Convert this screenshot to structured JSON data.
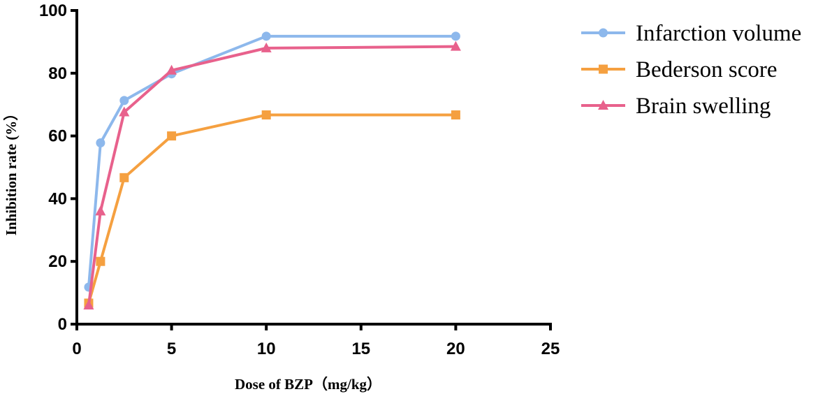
{
  "chart_data": {
    "type": "line",
    "title": "",
    "xlabel": "Dose of BZP（mg/kg）",
    "ylabel": "Inhibition rate (%）",
    "xlim": [
      0,
      25
    ],
    "ylim": [
      0,
      100
    ],
    "x_ticks": [
      "0",
      "5",
      "10",
      "15",
      "20",
      "25"
    ],
    "y_ticks": [
      "0",
      "20",
      "40",
      "60",
      "80",
      "100"
    ],
    "legend_position": "top-right",
    "grid": false,
    "series": [
      {
        "name": "Infarction volume",
        "color": "#8db8ec",
        "marker": "circle",
        "x": [
          0.625,
          1.25,
          2.5,
          5,
          10,
          20
        ],
        "values": [
          11.8,
          57.8,
          71.3,
          79.8,
          91.8,
          91.8
        ]
      },
      {
        "name": "Bederson score",
        "color": "#f5a040",
        "marker": "square",
        "x": [
          0.625,
          1.25,
          2.5,
          5,
          10,
          20
        ],
        "values": [
          6.7,
          20.0,
          46.7,
          60.0,
          66.7,
          66.7
        ]
      },
      {
        "name": "Brain swelling",
        "color": "#e8618c",
        "marker": "triangle",
        "x": [
          0.625,
          1.25,
          2.5,
          5,
          10,
          20
        ],
        "values": [
          6.0,
          36.0,
          67.6,
          80.9,
          88.0,
          88.5
        ]
      }
    ]
  }
}
